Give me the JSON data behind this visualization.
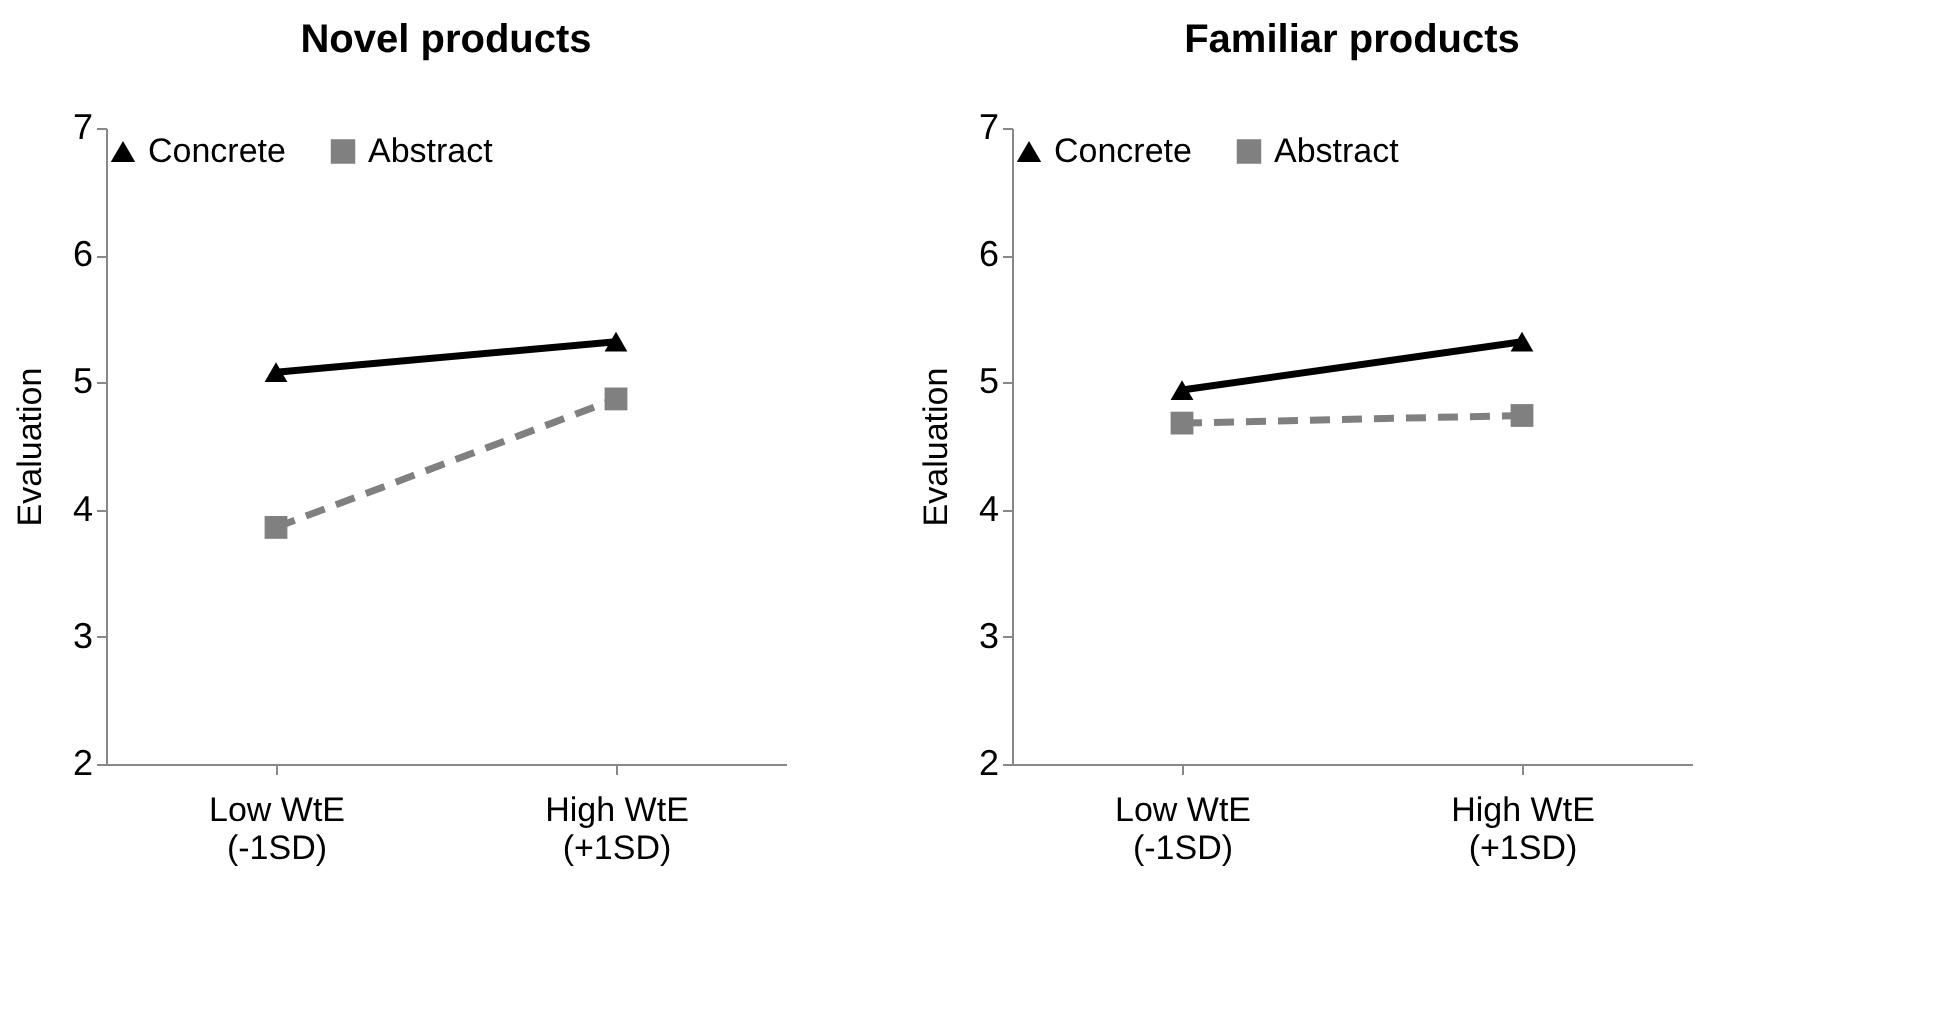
{
  "chart_data": [
    {
      "type": "line",
      "title": "Novel products",
      "ylabel": "Evaluation",
      "categories": [
        "Low WtE\n(-1SD)",
        "High WtE\n(+1SD)"
      ],
      "ylim": [
        2,
        7
      ],
      "yticks": [
        2,
        3,
        4,
        5,
        6,
        7
      ],
      "grid": false,
      "legend": "top",
      "series": [
        {
          "name": "Concrete",
          "color": "#000000",
          "marker": "triangle",
          "line_style": "solid",
          "values": [
            5.08,
            5.32
          ]
        },
        {
          "name": "Abstract",
          "color": "#808080",
          "marker": "square",
          "line_style": "dashed",
          "values": [
            3.86,
            4.87
          ]
        }
      ]
    },
    {
      "type": "line",
      "title": "Familiar products",
      "ylabel": "Evaluation",
      "categories": [
        "Low WtE\n(-1SD)",
        "High WtE\n(+1SD)"
      ],
      "ylim": [
        2,
        7
      ],
      "yticks": [
        2,
        3,
        4,
        5,
        6,
        7
      ],
      "grid": false,
      "legend": "top",
      "series": [
        {
          "name": "Concrete",
          "color": "#000000",
          "marker": "triangle",
          "line_style": "solid",
          "values": [
            4.94,
            5.32
          ]
        },
        {
          "name": "Abstract",
          "color": "#808080",
          "marker": "square",
          "line_style": "dashed",
          "values": [
            4.68,
            4.74
          ]
        }
      ]
    }
  ]
}
